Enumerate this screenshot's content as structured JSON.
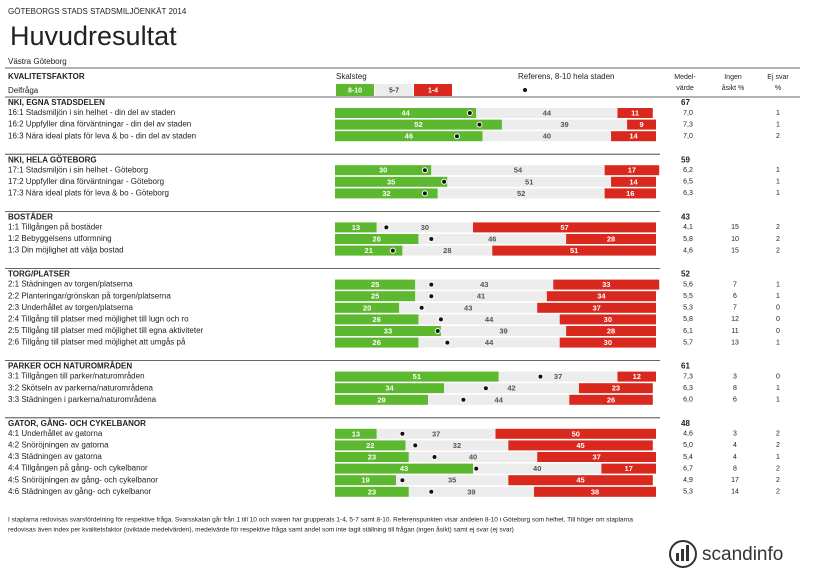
{
  "header": {
    "survey": "GÖTEBORGS STADS STADSMILJÖENKÄT 2014",
    "title": "Huvudresultat",
    "area": "Västra Göteborg",
    "factor_label": "KVALITETSFAKTOR",
    "question_label": "Delfråga",
    "scale_label": "Skalsteg",
    "scale": [
      {
        "label": "8-10",
        "color": "#5cb82e"
      },
      {
        "label": "5-7",
        "color": "#ececec"
      },
      {
        "label": "1-4",
        "color": "#d9281e"
      }
    ],
    "reference_label": "Referens, 8-10 hela staden",
    "mean_label": [
      "Medel-",
      "värde"
    ],
    "none_label": [
      "Ingen",
      "åsikt %"
    ],
    "noanswer_label": [
      "Ej svar",
      "%"
    ]
  },
  "sections": [
    {
      "name": "NKI, EGNA STADSDELEN",
      "index": 67,
      "rows": [
        {
          "label": "16:1 Stadsmiljön i sin helhet - din del av staden",
          "values": [
            44,
            44,
            11
          ],
          "reference": 42,
          "mean": "7,0",
          "none": null,
          "noanswer": 1
        },
        {
          "label": "16:2 Uppfyller dina förväntningar - din del av staden",
          "values": [
            52,
            39,
            9
          ],
          "reference": 45,
          "mean": "7,3",
          "none": null,
          "noanswer": 1
        },
        {
          "label": "16:3 Nära ideal plats för leva & bo - din del av staden",
          "values": [
            46,
            40,
            14
          ],
          "reference": 38,
          "mean": "7,0",
          "none": null,
          "noanswer": 2
        }
      ]
    },
    {
      "name": "NKI, HELA GÖTEBORG",
      "index": 59,
      "rows": [
        {
          "label": "17:1 Stadsmiljön i sin helhet - Göteborg",
          "values": [
            30,
            54,
            17
          ],
          "reference": 28,
          "mean": "6,2",
          "none": null,
          "noanswer": 1
        },
        {
          "label": "17:2 Uppfyller dina förväntningar - Göteborg",
          "values": [
            35,
            51,
            14
          ],
          "reference": 34,
          "mean": "6,5",
          "none": null,
          "noanswer": 1
        },
        {
          "label": "17:3 Nära ideal plats för leva & bo - Göteborg",
          "values": [
            32,
            52,
            16
          ],
          "reference": 28,
          "mean": "6,3",
          "none": null,
          "noanswer": 1
        }
      ]
    },
    {
      "name": "BOSTÄDER",
      "index": 43,
      "rows": [
        {
          "label": "1:1 Tillgången på bostäder",
          "values": [
            13,
            30,
            57
          ],
          "reference": 16,
          "mean": "4,1",
          "none": 15,
          "noanswer": 2
        },
        {
          "label": "1:2 Bebyggelsens utformning",
          "values": [
            26,
            46,
            28
          ],
          "reference": 30,
          "mean": "5,8",
          "none": 10,
          "noanswer": 2
        },
        {
          "label": "1:3 Din möjlighet att välja bostad",
          "values": [
            21,
            28,
            51
          ],
          "reference": 18,
          "mean": "4,6",
          "none": 15,
          "noanswer": 2
        }
      ]
    },
    {
      "name": "TORG/PLATSER",
      "index": 52,
      "rows": [
        {
          "label": "2:1 Städningen av torgen/platserna",
          "values": [
            25,
            43,
            33
          ],
          "reference": 30,
          "mean": "5,6",
          "none": 7,
          "noanswer": 1
        },
        {
          "label": "2:2 Planteringar/grönskan på torgen/platserna",
          "values": [
            25,
            41,
            34
          ],
          "reference": 30,
          "mean": "5,5",
          "none": 6,
          "noanswer": 1
        },
        {
          "label": "2:3 Underhållet av torgen/platserna",
          "values": [
            20,
            43,
            37
          ],
          "reference": 27,
          "mean": "5,3",
          "none": 7,
          "noanswer": 0
        },
        {
          "label": "2:4 Tillgång till platser med möjlighet till lugn och ro",
          "values": [
            26,
            44,
            30
          ],
          "reference": 33,
          "mean": "5,8",
          "none": 12,
          "noanswer": 0
        },
        {
          "label": "2:5 Tillgång till platser med möjlighet till egna aktiviteter",
          "values": [
            33,
            39,
            28
          ],
          "reference": 32,
          "mean": "6,1",
          "none": 11,
          "noanswer": 0
        },
        {
          "label": "2:6 Tillgång till platser med möjlighet att umgås på",
          "values": [
            26,
            44,
            30
          ],
          "reference": 35,
          "mean": "5,7",
          "none": 13,
          "noanswer": 1
        }
      ]
    },
    {
      "name": "PARKER OCH NATUROMRÅDEN",
      "index": 61,
      "rows": [
        {
          "label": "3:1 Tillgången till parker/naturområden",
          "values": [
            51,
            37,
            12
          ],
          "reference": 64,
          "mean": "7,3",
          "none": 3,
          "noanswer": 0
        },
        {
          "label": "3:2 Skötseln av parkerna/naturområdena",
          "values": [
            34,
            42,
            23
          ],
          "reference": 47,
          "mean": "6,3",
          "none": 8,
          "noanswer": 1
        },
        {
          "label": "3:3 Städningen i parkerna/naturområdena",
          "values": [
            29,
            44,
            26
          ],
          "reference": 40,
          "mean": "6,0",
          "none": 6,
          "noanswer": 1
        }
      ]
    },
    {
      "name": "GATOR, GÅNG- OCH CYKELBANOR",
      "index": 48,
      "rows": [
        {
          "label": "4:1 Underhållet av gatorna",
          "values": [
            13,
            37,
            50
          ],
          "reference": 21,
          "mean": "4,6",
          "none": 3,
          "noanswer": 2
        },
        {
          "label": "4:2 Snöröjningen av gatorna",
          "values": [
            22,
            32,
            45
          ],
          "reference": 25,
          "mean": "5,0",
          "none": 4,
          "noanswer": 2
        },
        {
          "label": "4:3 Städningen av gatorna",
          "values": [
            23,
            40,
            37
          ],
          "reference": 31,
          "mean": "5,4",
          "none": 4,
          "noanswer": 1
        },
        {
          "label": "4:4 Tillgången på gång- och cykelbanor",
          "values": [
            43,
            40,
            17
          ],
          "reference": 44,
          "mean": "6,7",
          "none": 8,
          "noanswer": 2
        },
        {
          "label": "4:5 Snöröjningen av gång- och cykelbanor",
          "values": [
            19,
            35,
            45
          ],
          "reference": 21,
          "mean": "4,9",
          "none": 17,
          "noanswer": 2
        },
        {
          "label": "4:6 Städningen av gång- och cykelbanor",
          "values": [
            23,
            39,
            38
          ],
          "reference": 30,
          "mean": "5,3",
          "none": 14,
          "noanswer": 2
        }
      ]
    }
  ],
  "footer": {
    "note": [
      "I staplarna redovisas svarsfördelning för respektive fråga. Svarsskalan går från 1 till 10 och svaren har grupperats 1-4, 5-7 samt 8-10. Referenspunkten visar andelen 8-10 i Göteborg som helhet. Till höger om staplarna",
      "redovisas även index per kvalitetsfaktor (oviktade medelvärden), medelvärde för respektive fråga samt andel som inte tagit ställning till frågan (ingen åsikt) samt ej svar (ej svar)"
    ],
    "logo": "scandinfo"
  }
}
